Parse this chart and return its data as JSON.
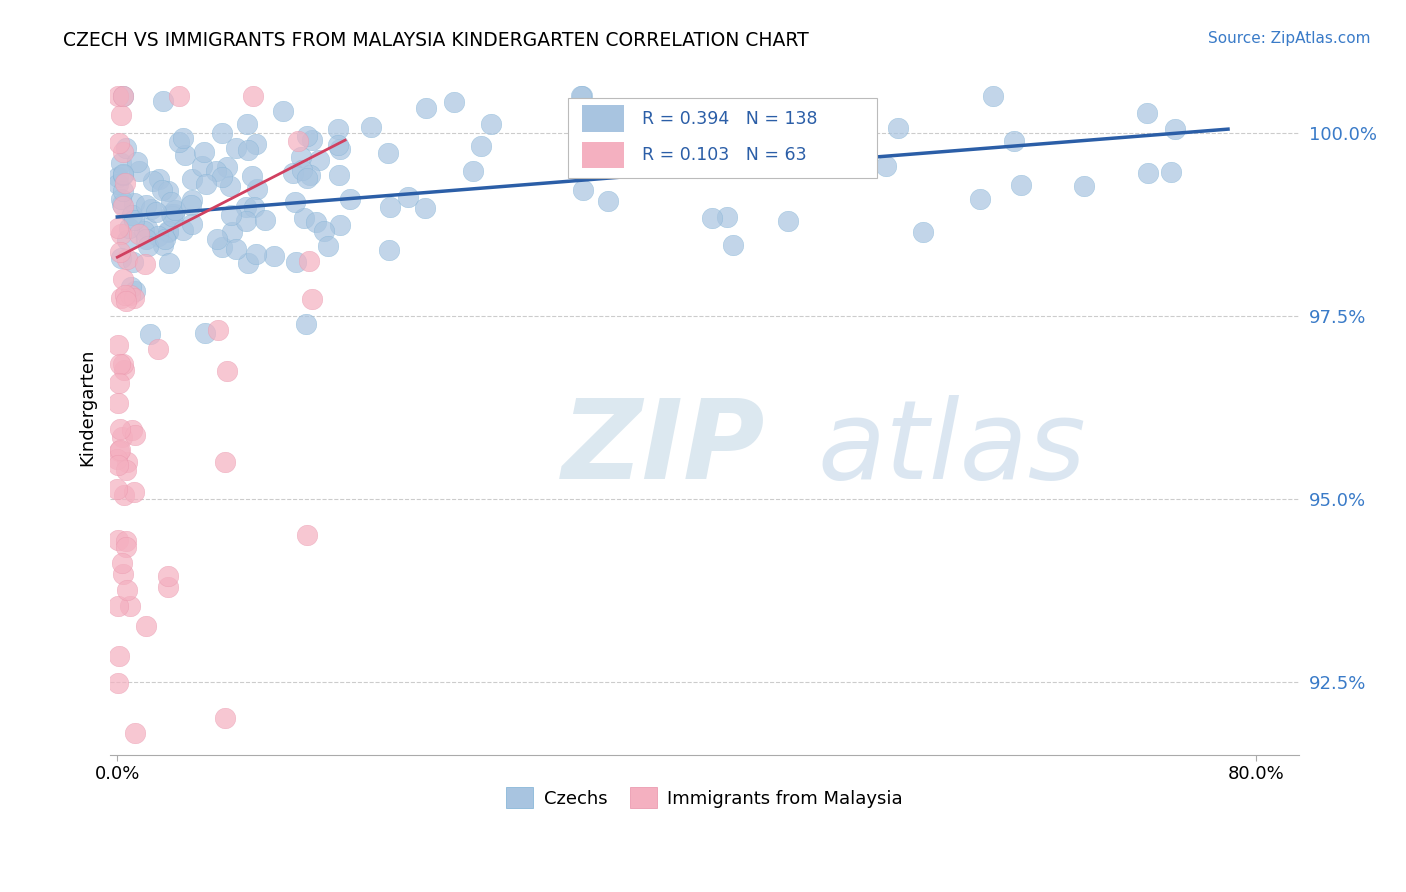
{
  "title": "CZECH VS IMMIGRANTS FROM MALAYSIA KINDERGARTEN CORRELATION CHART",
  "source": "Source: ZipAtlas.com",
  "ylabel": "Kindergarten",
  "ylim": [
    91.5,
    101.0
  ],
  "xlim": [
    -0.005,
    0.83
  ],
  "yticks": [
    92.5,
    95.0,
    97.5,
    100.0
  ],
  "blue_R": 0.394,
  "blue_N": 138,
  "pink_R": 0.103,
  "pink_N": 63,
  "blue_color": "#a8c4e0",
  "blue_edge_color": "#7aafd4",
  "blue_line_color": "#2b5ea7",
  "pink_color": "#f4b0c0",
  "pink_edge_color": "#e890a8",
  "pink_line_color": "#d04060",
  "legend_label_blue": "Czechs",
  "legend_label_pink": "Immigrants from Malaysia"
}
